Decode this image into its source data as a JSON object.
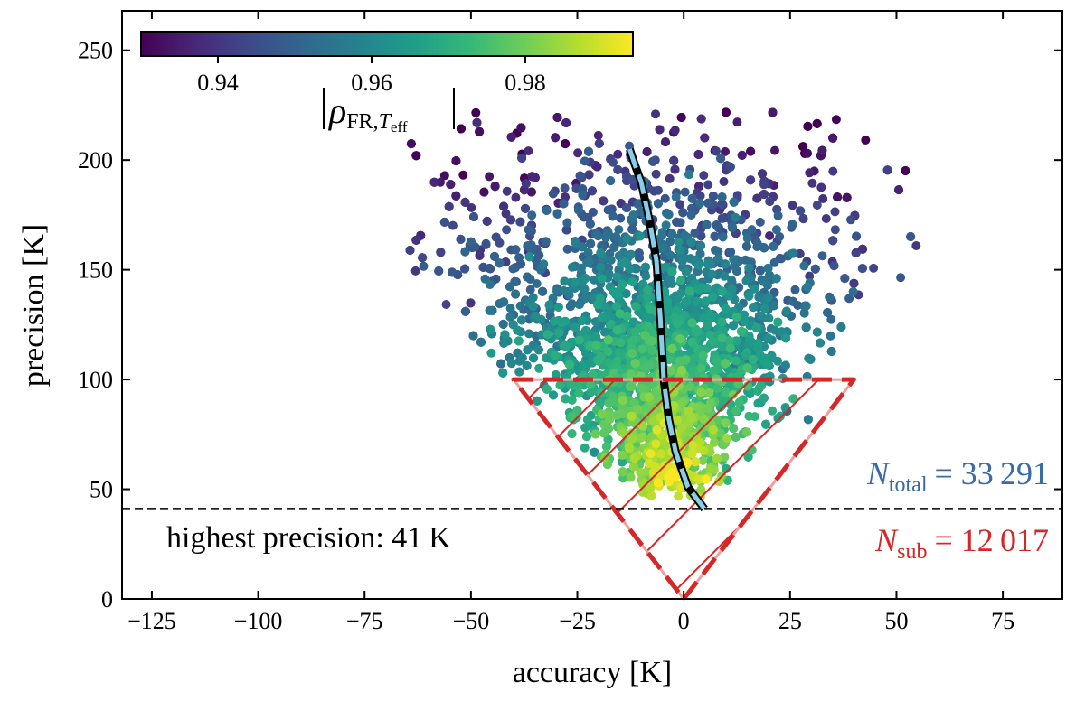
{
  "chart_data": {
    "type": "scatter",
    "xlabel": "accuracy [K]",
    "ylabel": "precision [K]",
    "xlim": [
      -132,
      89
    ],
    "ylim": [
      0,
      268
    ],
    "xticks": [
      -125,
      -100,
      -75,
      -50,
      -25,
      0,
      25,
      50,
      75
    ],
    "xtick_labels": [
      "−125",
      "−100",
      "−75",
      "−50",
      "−25",
      "0",
      "25",
      "50",
      "75"
    ],
    "yticks": [
      0,
      50,
      100,
      150,
      200,
      250
    ],
    "ytick_labels": [
      "0",
      "50",
      "100",
      "150",
      "200",
      "250"
    ],
    "grid": false,
    "colorbar": {
      "label_main": "ρ",
      "label_sub": "FR,",
      "label_sub2": "T",
      "label_sub3": "eff",
      "range": [
        0.93,
        0.994
      ],
      "ticks": [
        0.94,
        0.96,
        0.98
      ],
      "tick_labels": [
        "0.94",
        "0.96",
        "0.98"
      ],
      "colormap": "viridis",
      "placement": "top-left"
    },
    "scatter": {
      "description_count_total": 33291,
      "color_by": "|rho_FR,Teff|"
    },
    "median_line": {
      "x": [
        -12.7,
        -11.5,
        -10,
        -8,
        -6.4,
        -5.5,
        -4.7,
        -3.5,
        -1.9,
        1,
        4.9
      ],
      "y": [
        205,
        198,
        190,
        172,
        154,
        128,
        100,
        82,
        67,
        51,
        41
      ],
      "color": "#87ceeb"
    },
    "highest_precision_line": {
      "y": 41,
      "label": "highest precision: 41 K"
    },
    "subset_triangle": {
      "vertices": [
        [
          -40,
          100
        ],
        [
          40,
          100
        ],
        [
          0,
          0
        ]
      ],
      "color": "#d62728"
    },
    "annotations": {
      "n_total_symbol": "N",
      "n_total_sub": "total",
      "n_total_value": "= 33 291",
      "n_total_color": "#3b6ba5",
      "n_sub_symbol": "N",
      "n_sub_sub": "sub",
      "n_sub_value": "= 12 017",
      "n_sub_color": "#d62728"
    }
  }
}
